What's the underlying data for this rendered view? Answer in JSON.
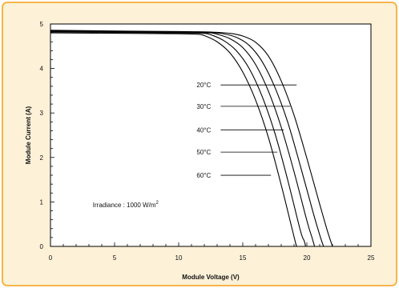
{
  "chart_data": {
    "type": "line",
    "xlabel": "Module Voltage (V)",
    "ylabel": "Module Current (A)",
    "xlim": [
      0,
      25
    ],
    "ylim": [
      0,
      5
    ],
    "x_ticks": [
      0,
      5,
      10,
      15,
      20,
      25
    ],
    "y_ticks": [
      0,
      1,
      2,
      3,
      4,
      5
    ],
    "grid": false,
    "annotation": {
      "text": "Irradiance : 1000 W/m",
      "superscript": "2",
      "x": 3.3,
      "y": 0.88
    },
    "series": [
      {
        "name": "20°C",
        "label_xy": [
          11.4,
          3.63
        ],
        "label_end": [
          19.2,
          3.63
        ],
        "points": [
          [
            0,
            4.86
          ],
          [
            6,
            4.84
          ],
          [
            10,
            4.83
          ],
          [
            11.5,
            4.825
          ],
          [
            12.5,
            4.82
          ],
          [
            14,
            4.79
          ],
          [
            15,
            4.73
          ],
          [
            16,
            4.59
          ],
          [
            17,
            4.28
          ],
          [
            18,
            3.72
          ],
          [
            19,
            2.95
          ],
          [
            20,
            1.98
          ],
          [
            21,
            0.95
          ],
          [
            21.6,
            0.35
          ],
          [
            22,
            0.0
          ]
        ]
      },
      {
        "name": "30°C",
        "label_xy": [
          11.4,
          3.15
        ],
        "label_end": [
          18.7,
          3.15
        ],
        "points": [
          [
            0,
            4.85
          ],
          [
            6,
            4.83
          ],
          [
            10,
            4.82
          ],
          [
            11.5,
            4.815
          ],
          [
            12.5,
            4.81
          ],
          [
            13.5,
            4.78
          ],
          [
            14.5,
            4.7
          ],
          [
            15.5,
            4.52
          ],
          [
            16.5,
            4.16
          ],
          [
            17.5,
            3.58
          ],
          [
            18.5,
            2.8
          ],
          [
            19.5,
            1.8
          ],
          [
            20.5,
            0.75
          ],
          [
            21,
            0.26
          ],
          [
            21.3,
            0.0
          ]
        ]
      },
      {
        "name": "40°C",
        "label_xy": [
          11.4,
          2.62
        ],
        "label_end": [
          18.2,
          2.62
        ],
        "points": [
          [
            0,
            4.83
          ],
          [
            6,
            4.82
          ],
          [
            10,
            4.81
          ],
          [
            11.5,
            4.805
          ],
          [
            12.5,
            4.8
          ],
          [
            13,
            4.77
          ],
          [
            14,
            4.67
          ],
          [
            15,
            4.47
          ],
          [
            16,
            4.09
          ],
          [
            17,
            3.49
          ],
          [
            18,
            2.68
          ],
          [
            19,
            1.68
          ],
          [
            20,
            0.58
          ],
          [
            20.4,
            0.2
          ],
          [
            20.6,
            0.0
          ]
        ]
      },
      {
        "name": "50°C",
        "label_xy": [
          11.4,
          2.12
        ],
        "label_end": [
          17.7,
          2.12
        ],
        "points": [
          [
            0,
            4.82
          ],
          [
            6,
            4.81
          ],
          [
            10,
            4.8
          ],
          [
            11.5,
            4.795
          ],
          [
            12,
            4.79
          ],
          [
            12.5,
            4.76
          ],
          [
            13.5,
            4.63
          ],
          [
            14.5,
            4.4
          ],
          [
            15.5,
            4.0
          ],
          [
            16.5,
            3.38
          ],
          [
            17.5,
            2.55
          ],
          [
            18.5,
            1.5
          ],
          [
            19.5,
            0.35
          ],
          [
            19.8,
            0.12
          ],
          [
            19.9,
            0.0
          ]
        ]
      },
      {
        "name": "60°C",
        "label_xy": [
          11.4,
          1.6
        ],
        "label_end": [
          17.2,
          1.6
        ],
        "points": [
          [
            0,
            4.8
          ],
          [
            6,
            4.79
          ],
          [
            10,
            4.78
          ],
          [
            11.5,
            4.77
          ],
          [
            12,
            4.74
          ],
          [
            13,
            4.6
          ],
          [
            14,
            4.35
          ],
          [
            15,
            3.92
          ],
          [
            16,
            3.29
          ],
          [
            17,
            2.45
          ],
          [
            18,
            1.38
          ],
          [
            18.8,
            0.45
          ],
          [
            19.1,
            0.1
          ],
          [
            19.2,
            0.0
          ]
        ]
      }
    ]
  }
}
